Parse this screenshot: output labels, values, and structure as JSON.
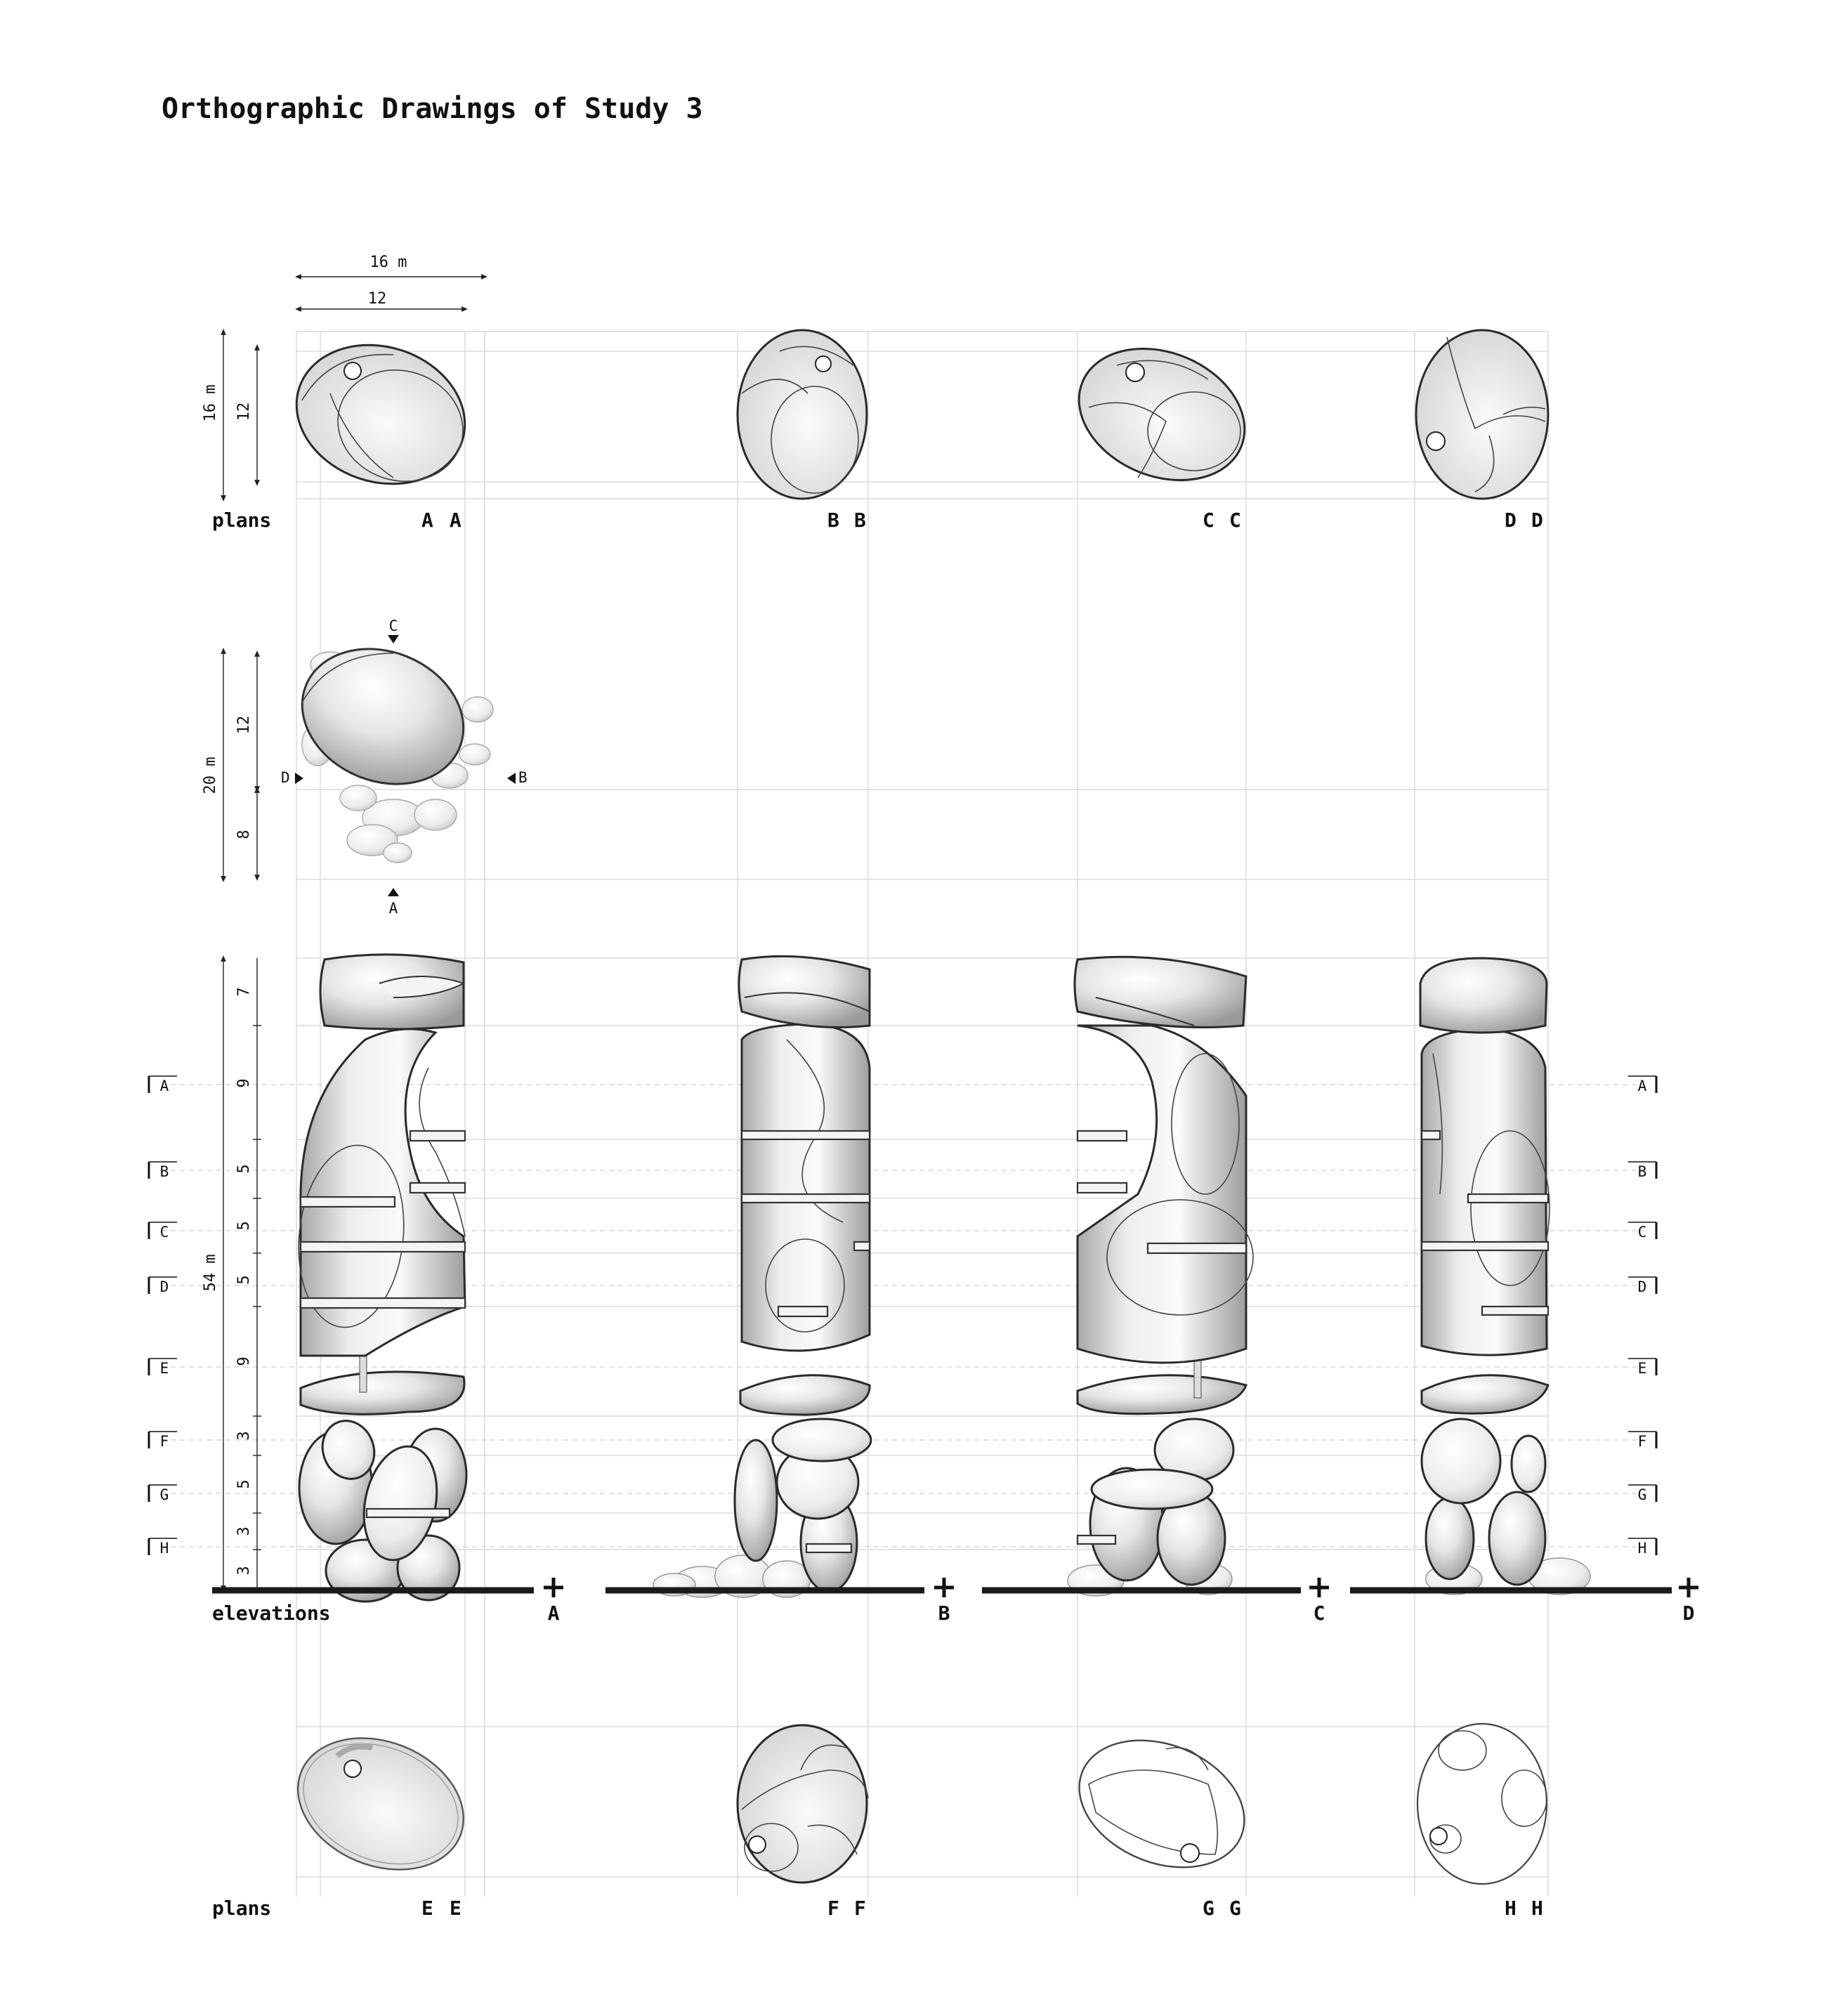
{
  "title": "Orthographic Drawings of Study 3",
  "row_labels": {
    "plans_top": "plans",
    "elevations": "elevations",
    "plans_bottom": "plans"
  },
  "plan_dimensions": {
    "outer_width": "16 m",
    "inner_width": "12",
    "outer_depth": "16 m",
    "inner_depth": "12"
  },
  "site_plan": {
    "total": "20 m",
    "upper": "12",
    "lower": "8",
    "markers": {
      "top": "C",
      "bottom": "A",
      "left": "D",
      "right": "B"
    }
  },
  "elevation": {
    "total_height": "54 m",
    "segments": [
      "7",
      "9",
      "5",
      "5",
      "5",
      "9",
      "3",
      "5",
      "3",
      "3"
    ],
    "section_markers": [
      "A",
      "B",
      "C",
      "D",
      "E",
      "F",
      "G",
      "H"
    ],
    "view_labels": [
      "A",
      "B",
      "C",
      "D"
    ]
  },
  "top_plans": [
    {
      "label_left": "A",
      "label_right": "A"
    },
    {
      "label_left": "B",
      "label_right": "B"
    },
    {
      "label_left": "C",
      "label_right": "C"
    },
    {
      "label_left": "D",
      "label_right": "D"
    }
  ],
  "bottom_plans": [
    {
      "label_left": "E",
      "label_right": "E"
    },
    {
      "label_left": "F",
      "label_right": "F"
    },
    {
      "label_left": "G",
      "label_right": "G"
    },
    {
      "label_left": "H",
      "label_right": "H"
    }
  ],
  "colors": {
    "ink": "#111111",
    "grid": "#dcdcdc",
    "tone_light": "#f2f2f2",
    "tone_mid": "#bdbdbd",
    "tone_dark": "#8a8a8a"
  }
}
